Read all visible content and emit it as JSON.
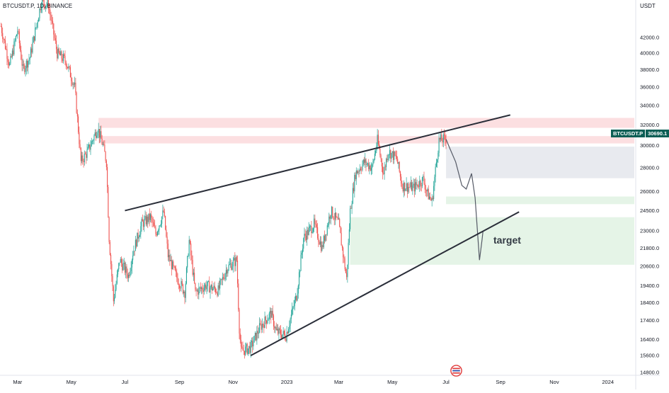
{
  "header": {
    "symbol": "BTCUSDT.P, 1D, BINANCE",
    "currency": "USDT"
  },
  "price_tag": {
    "symbol": "BTCUSDT.P",
    "value": "30690.1",
    "color": "#0b5e55"
  },
  "annotation": {
    "text": "target"
  },
  "colors": {
    "up_candle": "#26a69a",
    "down_candle": "#ef5350",
    "trendline": "#2a2e39",
    "resistance_zone": "#fcdfe1",
    "gray_zone": "#e8eaef",
    "green_zone": "#e5f4e7",
    "projection_line": "#555a66"
  },
  "chart_data": {
    "type": "candlestick",
    "x_axis": {
      "labels": [
        "Mar",
        "May",
        "Jul",
        "Sep",
        "Nov",
        "2023",
        "Mar",
        "May",
        "Jul",
        "Sep",
        "Nov",
        "2024"
      ],
      "range": [
        "2022-02-09",
        "2024-01-31"
      ]
    },
    "y_axis": {
      "scale": "log",
      "ticks": [
        14800,
        15600,
        16400,
        17400,
        18400,
        19400,
        20600,
        21800,
        23000,
        24500,
        26000,
        28000,
        30000,
        32000,
        34000,
        36000,
        38000,
        40000,
        42000
      ],
      "tick_labels": [
        "14800.0",
        "15600.0",
        "16400.0",
        "17400.0",
        "18400.0",
        "19400.0",
        "20600.0",
        "21800.0",
        "23000.0",
        "24500.0",
        "26000.0",
        "28000.0",
        "30000.0",
        "32000.0",
        "34000.0",
        "36000.0",
        "38000.0",
        "40000.0",
        "42000.0"
      ],
      "range": [
        14200,
        47000
      ]
    },
    "price_path": [
      [
        "2022-02-10",
        43500
      ],
      [
        "2022-02-20",
        38500
      ],
      [
        "2022-03-01",
        43000
      ],
      [
        "2022-03-07",
        38000
      ],
      [
        "2022-03-15",
        39500
      ],
      [
        "2022-03-28",
        47000
      ],
      [
        "2022-04-05",
        46500
      ],
      [
        "2022-04-15",
        40000
      ],
      [
        "2022-04-25",
        39000
      ],
      [
        "2022-05-05",
        36000
      ],
      [
        "2022-05-10",
        30500
      ],
      [
        "2022-05-12",
        28500
      ],
      [
        "2022-05-20",
        29500
      ],
      [
        "2022-05-31",
        31700
      ],
      [
        "2022-06-06",
        30000
      ],
      [
        "2022-06-10",
        28500
      ],
      [
        "2022-06-13",
        22500
      ],
      [
        "2022-06-18",
        18500
      ],
      [
        "2022-06-25",
        21000
      ],
      [
        "2022-07-05",
        20000
      ],
      [
        "2022-07-10",
        21500
      ],
      [
        "2022-07-20",
        23500
      ],
      [
        "2022-07-30",
        24000
      ],
      [
        "2022-08-05",
        22800
      ],
      [
        "2022-08-14",
        24400
      ],
      [
        "2022-08-19",
        21300
      ],
      [
        "2022-08-28",
        20000
      ],
      [
        "2022-09-07",
        19000
      ],
      [
        "2022-09-12",
        22300
      ],
      [
        "2022-09-19",
        19000
      ],
      [
        "2022-10-01",
        19400
      ],
      [
        "2022-10-15",
        19100
      ],
      [
        "2022-10-25",
        20500
      ],
      [
        "2022-11-05",
        21000
      ],
      [
        "2022-11-08",
        17000
      ],
      [
        "2022-11-10",
        15800
      ],
      [
        "2022-11-21",
        16000
      ],
      [
        "2022-12-01",
        17000
      ],
      [
        "2022-12-14",
        17800
      ],
      [
        "2022-12-20",
        16800
      ],
      [
        "2022-12-31",
        16600
      ],
      [
        "2023-01-12",
        18800
      ],
      [
        "2023-01-20",
        22500
      ],
      [
        "2023-02-01",
        23500
      ],
      [
        "2023-02-10",
        21800
      ],
      [
        "2023-02-20",
        24500
      ],
      [
        "2023-03-01",
        23500
      ],
      [
        "2023-03-10",
        19800
      ],
      [
        "2023-03-14",
        24500
      ],
      [
        "2023-03-20",
        27500
      ],
      [
        "2023-03-30",
        28500
      ],
      [
        "2023-04-08",
        28000
      ],
      [
        "2023-04-14",
        30500
      ],
      [
        "2023-04-21",
        27500
      ],
      [
        "2023-04-26",
        29500
      ],
      [
        "2023-05-06",
        28800
      ],
      [
        "2023-05-12",
        26500
      ],
      [
        "2023-05-25",
        26300
      ],
      [
        "2023-06-05",
        27000
      ],
      [
        "2023-06-10",
        25800
      ],
      [
        "2023-06-15",
        25200
      ],
      [
        "2023-06-20",
        28500
      ],
      [
        "2023-06-23",
        30500
      ],
      [
        "2023-07-01",
        30600
      ]
    ],
    "projection_path": [
      [
        "2023-07-01",
        30600
      ],
      [
        "2023-07-05",
        29800
      ],
      [
        "2023-07-12",
        28500
      ],
      [
        "2023-07-19",
        26500
      ],
      [
        "2023-07-24",
        26200
      ],
      [
        "2023-07-30",
        27500
      ],
      [
        "2023-08-03",
        25500
      ],
      [
        "2023-08-08",
        21000
      ],
      [
        "2023-08-11",
        22400
      ],
      [
        "2023-08-12",
        23000
      ]
    ],
    "zones": [
      {
        "name": "resistance-upper",
        "from": 31700,
        "to": 32700,
        "start": "2022-06-01",
        "end": "2024-01-31"
      },
      {
        "name": "resistance-lower",
        "from": 30200,
        "to": 30900,
        "start": "2022-06-01",
        "end": "2024-01-31"
      },
      {
        "name": "gray-zone",
        "from": 27100,
        "to": 29900,
        "start": "2023-07-01",
        "end": "2024-01-31"
      },
      {
        "name": "light-green-band",
        "from": 25000,
        "to": 25600,
        "start": "2023-07-01",
        "end": "2024-01-31"
      },
      {
        "name": "green-zone",
        "from": 20700,
        "to": 24000,
        "start": "2023-03-14",
        "end": "2024-01-31"
      }
    ],
    "trendlines": [
      {
        "name": "upper-wedge-line",
        "points": [
          [
            "2022-07-01",
            24500
          ],
          [
            "2023-09-12",
            33000
          ]
        ]
      },
      {
        "name": "lower-wedge-line",
        "points": [
          [
            "2022-11-21",
            15600
          ],
          [
            "2023-09-22",
            24400
          ]
        ]
      }
    ],
    "target": {
      "date": "2023-08-12",
      "value": 21800
    }
  }
}
